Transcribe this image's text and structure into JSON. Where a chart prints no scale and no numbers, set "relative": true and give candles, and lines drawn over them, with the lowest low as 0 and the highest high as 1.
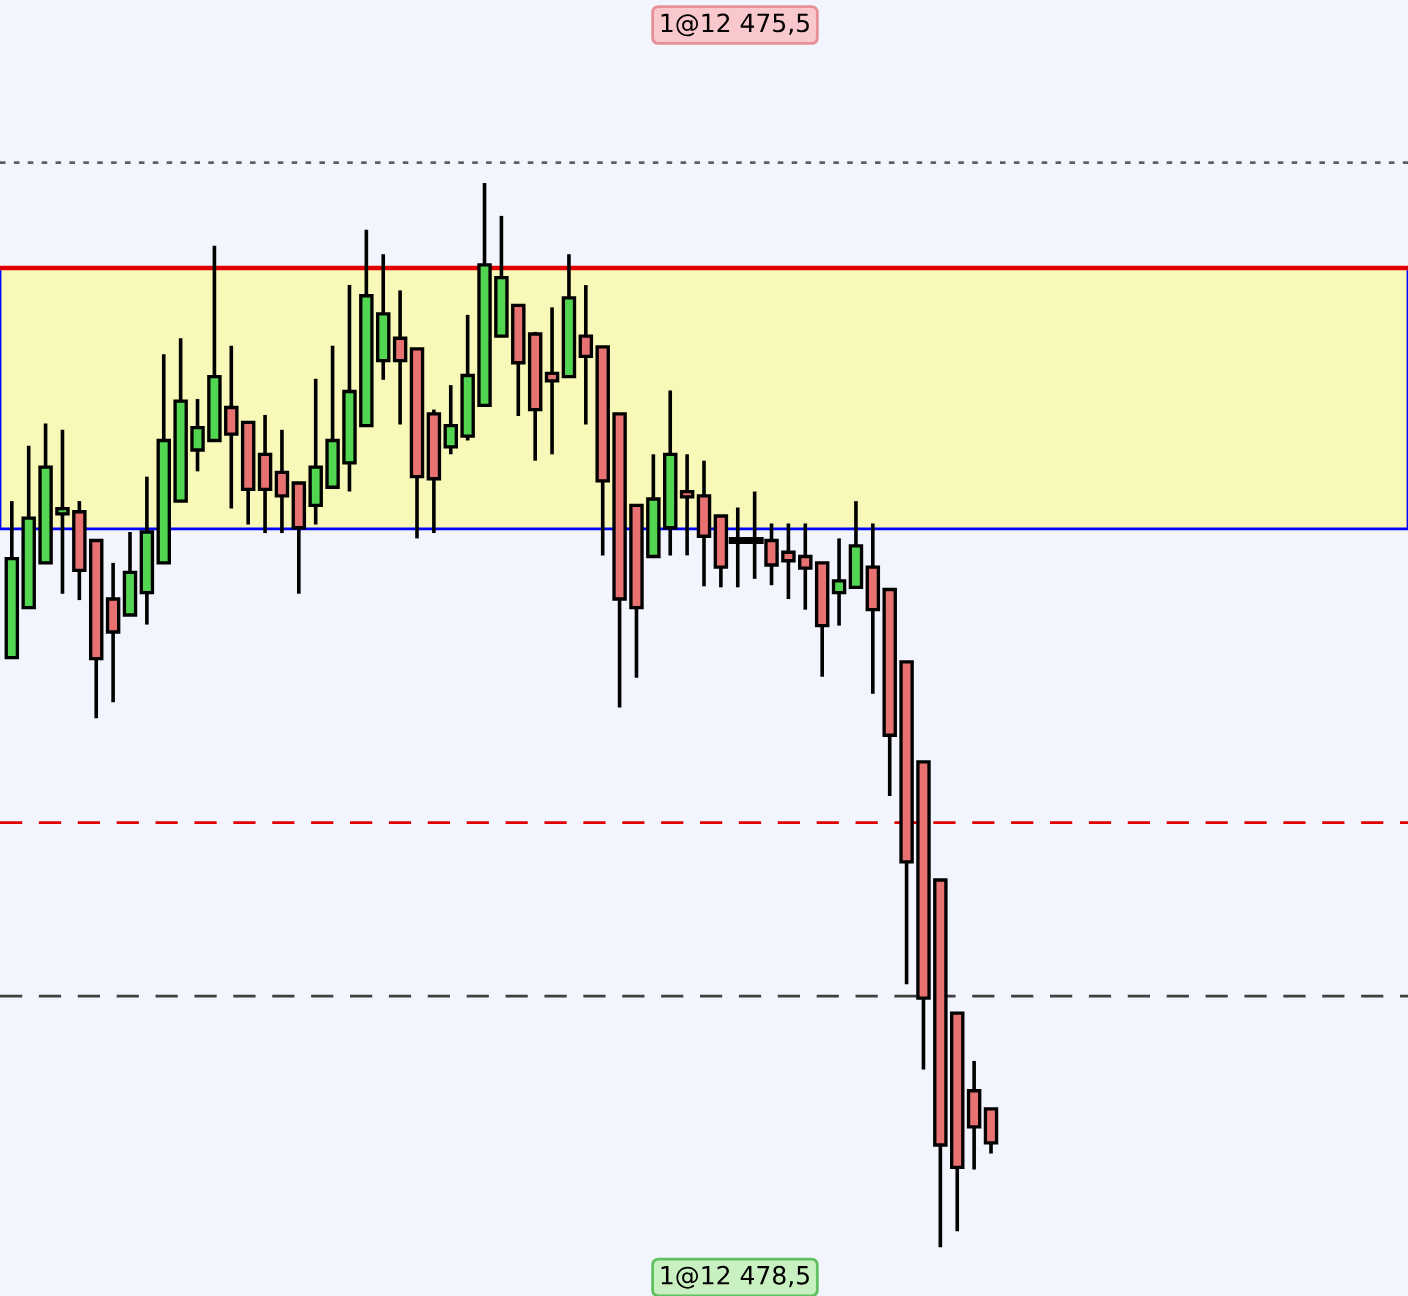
{
  "chart_data": {
    "type": "candlestick",
    "categories": [
      null,
      null,
      null,
      null,
      null,
      null,
      null,
      null,
      null,
      null,
      null,
      null,
      null,
      null,
      null,
      null,
      null,
      null,
      null,
      null,
      null,
      null,
      null,
      null,
      null,
      null,
      null,
      null,
      null,
      null,
      null,
      null,
      null,
      null,
      null,
      null,
      null,
      null,
      null,
      null,
      null,
      null,
      null,
      null,
      null,
      null,
      null,
      null,
      null,
      null,
      null,
      null,
      null,
      null,
      null,
      null,
      null,
      null,
      null
    ],
    "ohlc": [
      [
        0.554,
        0.701,
        0.554,
        0.647
      ],
      [
        0.601,
        0.753,
        0.601,
        0.685
      ],
      [
        0.643,
        0.774,
        0.643,
        0.733
      ],
      [
        0.689,
        0.768,
        0.614,
        0.694
      ],
      [
        0.691,
        0.701,
        0.608,
        0.636
      ],
      [
        0.664,
        0.664,
        0.497,
        0.553
      ],
      [
        0.609,
        0.643,
        0.512,
        0.578
      ],
      [
        0.594,
        0.672,
        0.594,
        0.634
      ],
      [
        0.615,
        0.724,
        0.585,
        0.672
      ],
      [
        0.643,
        0.839,
        0.643,
        0.758
      ],
      [
        0.701,
        0.854,
        0.701,
        0.795
      ],
      [
        0.749,
        0.797,
        0.729,
        0.77
      ],
      [
        0.758,
        0.941,
        0.758,
        0.818
      ],
      [
        0.789,
        0.847,
        0.694,
        0.764
      ],
      [
        0.775,
        0.775,
        0.679,
        0.712
      ],
      [
        0.745,
        0.782,
        0.671,
        0.712
      ],
      [
        0.728,
        0.768,
        0.671,
        0.706
      ],
      [
        0.718,
        0.718,
        0.614,
        0.676
      ],
      [
        0.697,
        0.816,
        0.679,
        0.733
      ],
      [
        0.714,
        0.847,
        0.714,
        0.758
      ],
      [
        0.737,
        0.904,
        0.71,
        0.804
      ],
      [
        0.772,
        0.956,
        0.772,
        0.894
      ],
      [
        0.833,
        0.933,
        0.815,
        0.877
      ],
      [
        0.854,
        0.899,
        0.773,
        0.833
      ],
      [
        0.844,
        0.844,
        0.666,
        0.724
      ],
      [
        0.783,
        0.787,
        0.671,
        0.722
      ],
      [
        0.752,
        0.81,
        0.745,
        0.772
      ],
      [
        0.762,
        0.876,
        0.758,
        0.819
      ],
      [
        0.791,
        1,
        0.791,
        0.923
      ],
      [
        0.856,
        0.969,
        0.856,
        0.911
      ],
      [
        0.885,
        0.885,
        0.781,
        0.831
      ],
      [
        0.858,
        0.86,
        0.739,
        0.787
      ],
      [
        0.821,
        0.883,
        0.745,
        0.814
      ],
      [
        0.818,
        0.933,
        0.818,
        0.892
      ],
      [
        0.856,
        0.904,
        0.773,
        0.837
      ],
      [
        0.846,
        0.846,
        0.65,
        0.72
      ],
      [
        0.783,
        0.783,
        0.507,
        0.609
      ],
      [
        0.697,
        0.697,
        0.535,
        0.601
      ],
      [
        0.649,
        0.745,
        0.649,
        0.703
      ],
      [
        0.676,
        0.805,
        0.65,
        0.745
      ],
      [
        0.71,
        0.745,
        0.65,
        0.705
      ],
      [
        0.706,
        0.739,
        0.621,
        0.668
      ],
      [
        0.687,
        0.687,
        0.62,
        0.639
      ],
      [
        0.664,
        0.695,
        0.62,
        0.664
      ],
      [
        0.664,
        0.71,
        0.628,
        0.664
      ],
      [
        0.664,
        0.68,
        0.622,
        0.641
      ],
      [
        0.653,
        0.68,
        0.609,
        0.645
      ],
      [
        0.649,
        0.68,
        0.599,
        0.638
      ],
      [
        0.643,
        0.643,
        0.536,
        0.584
      ],
      [
        0.615,
        0.666,
        0.584,
        0.626
      ],
      [
        0.62,
        0.701,
        0.62,
        0.659
      ],
      [
        0.639,
        0.68,
        0.52,
        0.599
      ],
      [
        0.618,
        0.618,
        0.424,
        0.481
      ],
      [
        0.55,
        0.55,
        0.247,
        0.362
      ],
      [
        0.456,
        0.456,
        0.167,
        0.234
      ],
      [
        0.345,
        0.345,
        0,
        0.096
      ],
      [
        0.22,
        0.22,
        0.015,
        0.075
      ],
      [
        0.147,
        0.175,
        0.073,
        0.113
      ],
      [
        0.13,
        0.13,
        0.088,
        0.098
      ]
    ],
    "colors": [
      "#52d652",
      "#52d652",
      "#52d652",
      "#52d652",
      "#e87272",
      "#e87272",
      "#e87272",
      "#52d652",
      "#52d652",
      "#52d652",
      "#52d652",
      "#52d652",
      "#52d652",
      "#e87272",
      "#e87272",
      "#e87272",
      "#e87272",
      "#e87272",
      "#52d652",
      "#52d652",
      "#52d652",
      "#52d652",
      "#52d652",
      "#e87272",
      "#e87272",
      "#e87272",
      "#52d652",
      "#52d652",
      "#52d652",
      "#52d652",
      "#e87272",
      "#e87272",
      "#e87272",
      "#52d652",
      "#e87272",
      "#e87272",
      "#e87272",
      "#e87272",
      "#52d652",
      "#52d652",
      "#e87272",
      "#e87272",
      "#e87272",
      "#000000",
      "#000000",
      "#e87272",
      "#e87272",
      "#e87272",
      "#e87272",
      "#52d652",
      "#52d652",
      "#e87272",
      "#e87272",
      "#e87272",
      "#e87272",
      "#e87272",
      "#e87272",
      "#e87272",
      "#e87272"
    ],
    "ref_lines": [
      {
        "axis": "y",
        "value": 1.019,
        "color": "#606060",
        "line_style": "dotted"
      },
      {
        "axis": "y",
        "value": 0.92,
        "color": "#e00000",
        "line_style": "solid"
      },
      {
        "axis": "y",
        "value": 0.399,
        "color": "#e00000",
        "line_style": "dashed"
      },
      {
        "axis": "y",
        "value": 0.236,
        "color": "#404040",
        "line_style": "dashed"
      }
    ],
    "bands": [
      {
        "axis": "y",
        "from": 0.675,
        "to": 0.92,
        "color": "#f8f8b8"
      }
    ],
    "annotations": [
      "1@12 475,5",
      "1@12 478,5"
    ],
    "relative": true
  }
}
